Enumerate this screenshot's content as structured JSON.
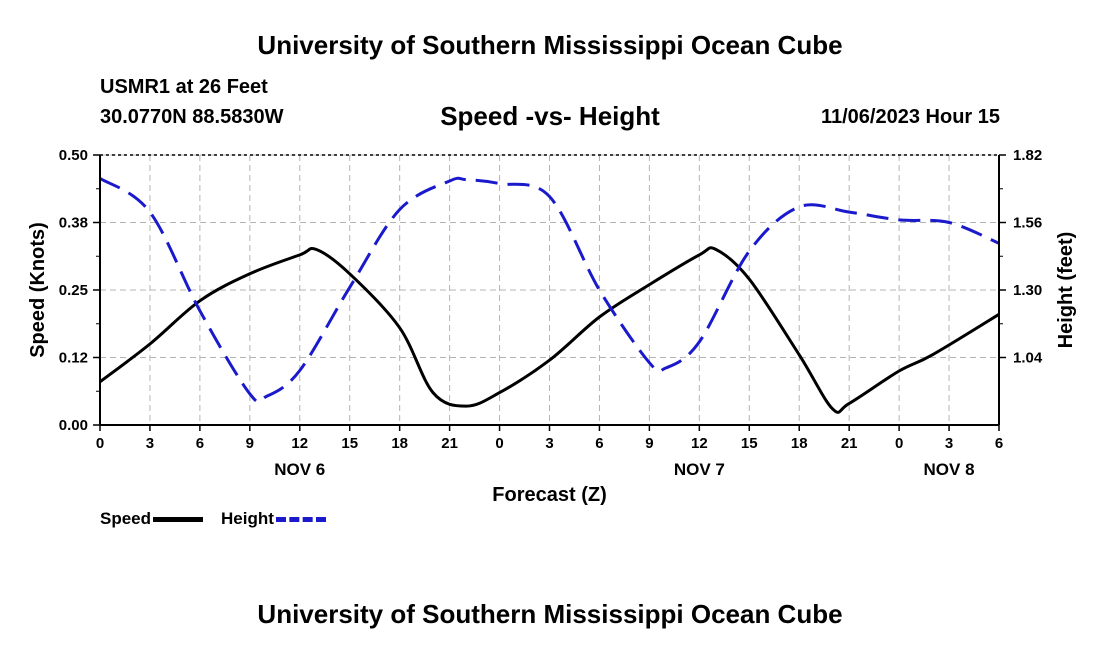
{
  "header": {
    "title": "University of Southern Mississippi Ocean Cube",
    "station": "USMR1 at 26 Feet",
    "coords": "30.0770N  88.5830W",
    "subtitle": "Speed -vs- Height",
    "datetime": "11/06/2023 Hour 15"
  },
  "legend": {
    "speed_label": "Speed",
    "height_label": "Height"
  },
  "footer": {
    "title": "University of Southern Mississippi Ocean Cube"
  },
  "colors": {
    "speed": "#000000",
    "height": "#1a1acc",
    "grid": "#b4b4b4"
  },
  "chart_data": {
    "type": "line",
    "title": "Speed -vs- Height",
    "xlabel": "Forecast (Z)",
    "ylabel": "Speed (Knots)",
    "y2label": "Height (feet)",
    "xlim": [
      0,
      54
    ],
    "ylim": [
      0,
      0.5
    ],
    "y2lim": [
      0.78,
      1.82
    ],
    "x_ticks": [
      0,
      3,
      6,
      9,
      12,
      15,
      18,
      21,
      24,
      27,
      30,
      33,
      36,
      39,
      42,
      45,
      48,
      51,
      54
    ],
    "x_tick_labels": [
      "0",
      "3",
      "6",
      "9",
      "12",
      "15",
      "18",
      "21",
      "0",
      "3",
      "6",
      "9",
      "12",
      "15",
      "18",
      "21",
      "0",
      "3",
      "6"
    ],
    "y_ticks": [
      0,
      0.125,
      0.25,
      0.375,
      0.5
    ],
    "y_tick_labels": [
      "0.00",
      "0.12",
      "0.25",
      "0.38",
      "0.50"
    ],
    "y2_ticks": [
      1.04,
      1.3,
      1.56,
      1.82
    ],
    "y2_tick_labels": [
      "1.04",
      "1.30",
      "1.56",
      "1.82"
    ],
    "date_labels": [
      {
        "x": 12,
        "label": "NOV 6"
      },
      {
        "x": 36,
        "label": "NOV 7"
      },
      {
        "x": 51,
        "label": "NOV 8"
      }
    ],
    "grid": true,
    "series": [
      {
        "name": "Speed",
        "axis": "left",
        "style": "solid",
        "x": [
          0,
          3,
          6,
          9,
          12,
          13,
          15,
          18,
          20,
          22,
          24,
          27,
          30,
          33,
          36,
          37,
          39,
          42,
          44,
          45,
          48,
          50,
          54
        ],
        "values": [
          0.08,
          0.15,
          0.23,
          0.28,
          0.315,
          0.325,
          0.28,
          0.18,
          0.06,
          0.035,
          0.06,
          0.12,
          0.2,
          0.26,
          0.315,
          0.325,
          0.27,
          0.13,
          0.03,
          0.04,
          0.1,
          0.13,
          0.205
        ]
      },
      {
        "name": "Height",
        "axis": "right",
        "style": "dashed",
        "x": [
          0,
          3,
          6,
          9,
          10,
          12,
          15,
          18,
          21,
          22,
          24,
          27,
          30,
          33,
          34,
          36,
          39,
          42,
          45,
          48,
          51,
          54
        ],
        "values": [
          1.73,
          1.6,
          1.22,
          0.9,
          0.89,
          0.99,
          1.31,
          1.61,
          1.72,
          1.725,
          1.71,
          1.66,
          1.3,
          1.02,
          1.0,
          1.1,
          1.45,
          1.62,
          1.6,
          1.57,
          1.56,
          1.48
        ]
      }
    ]
  }
}
